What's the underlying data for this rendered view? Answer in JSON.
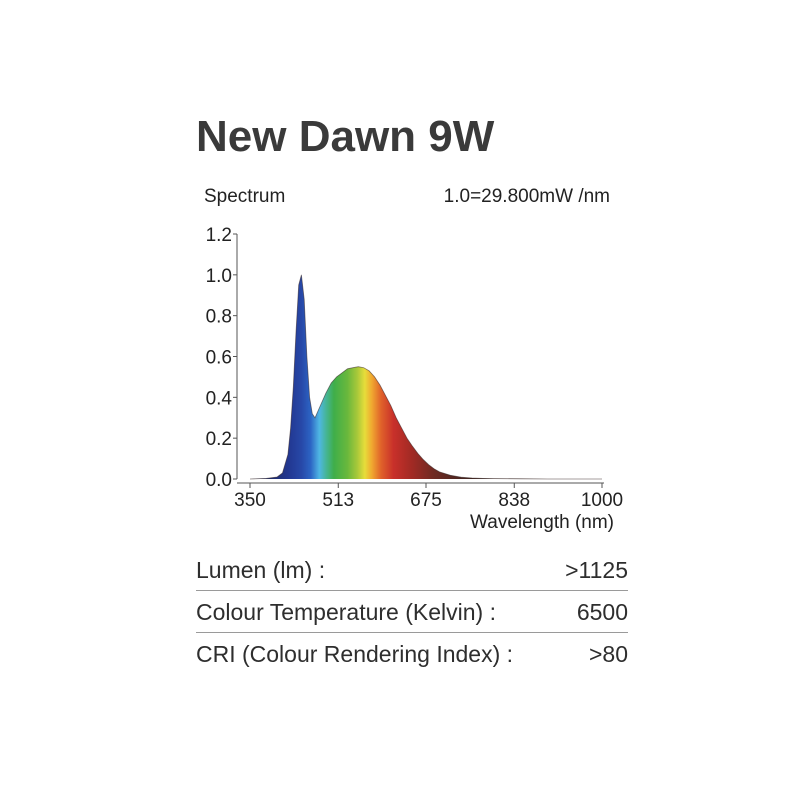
{
  "header": {
    "title": "New Dawn 9W"
  },
  "chart_data": {
    "type": "area",
    "subtitle_left": "Spectrum",
    "subtitle_right": "1.0=29.800mW /nm",
    "xlabel": "Wavelength (nm)",
    "ylabel": "",
    "xlim": [
      350,
      1000
    ],
    "ylim": [
      0,
      1.2
    ],
    "x_ticks": [
      "350",
      "513",
      "675",
      "838",
      "1000"
    ],
    "x_tick_values": [
      350,
      513,
      675,
      838,
      1000
    ],
    "y_ticks": [
      "0.0",
      "0.2",
      "0.4",
      "0.6",
      "0.8",
      "1.0",
      "1.2"
    ],
    "y_tick_values": [
      0,
      0.2,
      0.4,
      0.6,
      0.8,
      1.0,
      1.2
    ],
    "grid": false,
    "legend": "none",
    "series": [
      {
        "x": [
          350,
          380,
          400,
          410,
          420,
          425,
          430,
          435,
          440,
          445,
          450,
          455,
          460,
          465,
          470,
          480,
          490,
          500,
          510,
          520,
          530,
          540,
          550,
          560,
          570,
          580,
          590,
          600,
          610,
          620,
          630,
          640,
          650,
          660,
          670,
          680,
          690,
          700,
          720,
          740,
          760,
          780,
          800,
          850,
          900,
          1000
        ],
        "values": [
          0.0,
          0.003,
          0.01,
          0.03,
          0.12,
          0.25,
          0.45,
          0.72,
          0.95,
          1.0,
          0.88,
          0.6,
          0.4,
          0.32,
          0.3,
          0.36,
          0.42,
          0.47,
          0.5,
          0.52,
          0.54,
          0.545,
          0.55,
          0.545,
          0.53,
          0.5,
          0.46,
          0.41,
          0.36,
          0.3,
          0.25,
          0.2,
          0.16,
          0.125,
          0.095,
          0.07,
          0.05,
          0.035,
          0.018,
          0.009,
          0.005,
          0.003,
          0.002,
          0.001,
          0.0,
          0.0
        ]
      }
    ]
  },
  "specs": [
    {
      "label": "Lumen (lm) :",
      "value": ">1125"
    },
    {
      "label": "Colour Temperature (Kelvin) :",
      "value": "6500"
    },
    {
      "label": "CRI (Colour Rendering Index) :",
      "value": ">80"
    }
  ]
}
